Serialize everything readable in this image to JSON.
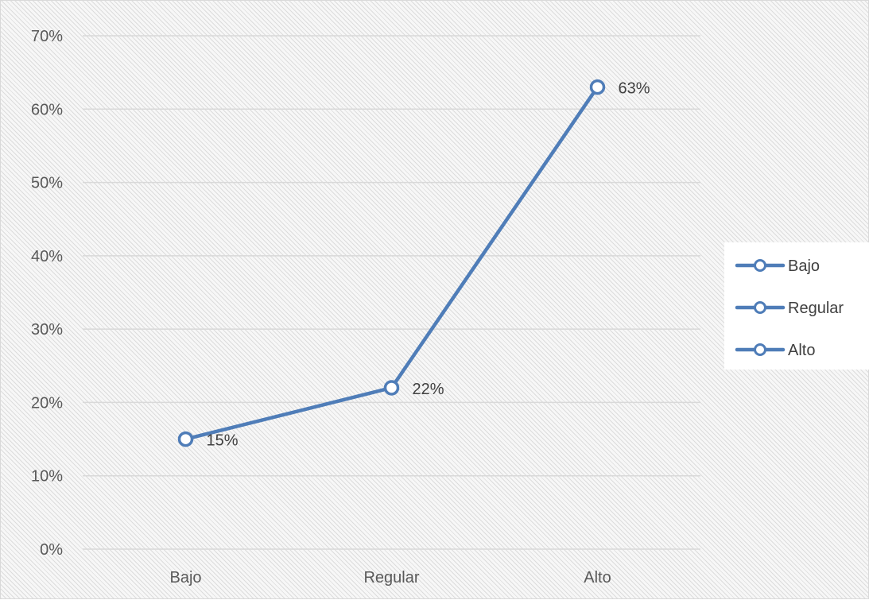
{
  "chart_data": {
    "type": "line",
    "title": "",
    "xlabel": "",
    "ylabel": "",
    "categories": [
      "Bajo",
      "Regular",
      "Alto"
    ],
    "series": [
      {
        "values": [
          15,
          22,
          63
        ],
        "data_labels": [
          "15%",
          "22%",
          "63%"
        ]
      }
    ],
    "ylim": [
      0,
      70
    ],
    "y_ticks": [
      0,
      10,
      20,
      30,
      40,
      50,
      60,
      70
    ],
    "y_tick_labels": [
      "0%",
      "10%",
      "20%",
      "30%",
      "40%",
      "50%",
      "60%",
      "70%"
    ],
    "legend": {
      "position": "right",
      "entries": [
        "Bajo",
        "Regular",
        "Alto"
      ]
    },
    "grid": true,
    "colors": {
      "line": "#4f7db8",
      "marker_fill": "#ffffff"
    }
  }
}
